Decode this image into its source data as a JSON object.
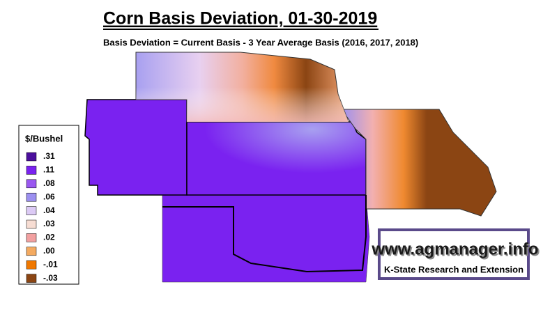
{
  "title": "Corn Basis Deviation, 01-30-2019",
  "subtitle": "Basis Deviation = Current Basis - 3 Year Average Basis (2016, 2017, 2018)",
  "legend": {
    "title": "$/Bushel",
    "items": [
      {
        "label": ".31",
        "color": "#4b0f9c"
      },
      {
        "label": ".11",
        "color": "#7a22f0"
      },
      {
        "label": ".08",
        "color": "#9a58f0"
      },
      {
        "label": ".06",
        "color": "#9c90f0"
      },
      {
        "label": ".04",
        "color": "#dccaf5"
      },
      {
        "label": ".03",
        "color": "#f7ddd3"
      },
      {
        "label": ".02",
        "color": "#f2a0a0"
      },
      {
        "label": ".00",
        "color": "#f4aa60"
      },
      {
        "label": "-.01",
        "color": "#f07800"
      },
      {
        "label": "-.03",
        "color": "#8b4513"
      }
    ]
  },
  "logo": {
    "url": "www.agmanager.info",
    "tagline": "K-State Research and Extension"
  }
}
